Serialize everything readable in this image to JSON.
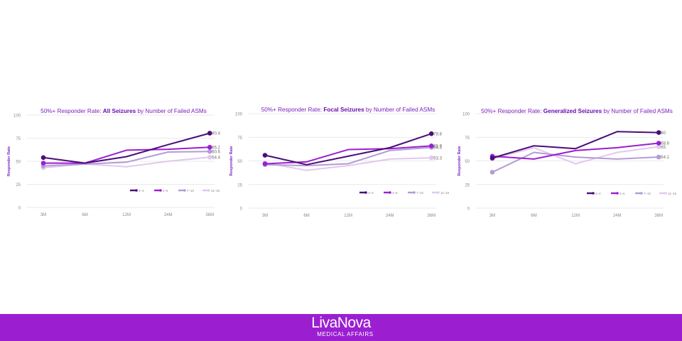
{
  "colors": {
    "footer": "#9b1fd1",
    "title_text": "#7a1fbf",
    "title_bold": "#6a0dad",
    "axis_text": "#8a8a8a",
    "grid": "#e2e2e2",
    "ylabel": "#7a1fbf"
  },
  "series_colors": [
    "#4a0e78",
    "#9b1fd1",
    "#b49bd6",
    "#e2c8ee"
  ],
  "legend_labels": [
    "2–3",
    "4–6",
    "7–10",
    "11–16"
  ],
  "chart_data": [
    {
      "type": "line",
      "title_prefix": "50%+ Responder Rate: ",
      "title_bold": "All Seizures",
      "title_suffix": " by Number of Failed ASMs",
      "ylabel": "Responder Rate",
      "xlabel": "",
      "categories": [
        "3M",
        "6M",
        "12M",
        "24M",
        "36M"
      ],
      "ylim": [
        0,
        100
      ],
      "yticks": [
        0,
        25,
        50,
        75,
        100
      ],
      "legend_position": "bottom-right",
      "grid": true,
      "series": [
        {
          "name": "2–3",
          "values": [
            54,
            48,
            55,
            68,
            80.4
          ],
          "end_label": "80.4"
        },
        {
          "name": "4–6",
          "values": [
            48,
            48,
            62,
            63,
            65.2
          ],
          "end_label": "65.2"
        },
        {
          "name": "7–10",
          "values": [
            45,
            47,
            49,
            60,
            60.6
          ],
          "end_label": "60.6"
        },
        {
          "name": "11–16",
          "values": [
            43,
            47,
            44,
            50,
            54.4
          ],
          "end_label": "54.4"
        }
      ]
    },
    {
      "type": "line",
      "title_prefix": "50%+ Responder Rate: ",
      "title_bold": "Focal Seizures",
      "title_suffix": " by Number of Failed ASMs",
      "ylabel": "Responder Rate",
      "xlabel": "",
      "categories": [
        "3M",
        "6M",
        "12M",
        "24M",
        "36M"
      ],
      "ylim": [
        0,
        100
      ],
      "yticks": [
        0,
        25,
        50,
        75,
        100
      ],
      "legend_position": "bottom-right",
      "grid": true,
      "series": [
        {
          "name": "2–3",
          "values": [
            56,
            46,
            55,
            64,
            78.8
          ],
          "end_label": "78.8"
        },
        {
          "name": "4–6",
          "values": [
            47,
            49,
            62,
            63,
            65.9
          ],
          "end_label": "65.9"
        },
        {
          "name": "7–10",
          "values": [
            46,
            45,
            47,
            61,
            64.3
          ],
          "end_label": "64.3"
        },
        {
          "name": "11–16",
          "values": [
            48,
            40,
            45,
            52,
            53.3
          ],
          "end_label": "53.3"
        }
      ]
    },
    {
      "type": "line",
      "title_prefix": "50%+ Responder Rate: ",
      "title_bold": "Generalized Seizures",
      "title_suffix": " by Number of Failed ASMs",
      "ylabel": "Responder Rate",
      "xlabel": "",
      "categories": [
        "3M",
        "6M",
        "12M",
        "24M",
        "36M"
      ],
      "ylim": [
        0,
        100
      ],
      "yticks": [
        0,
        25,
        50,
        75,
        100
      ],
      "legend_position": "bottom-right",
      "grid": true,
      "series": [
        {
          "name": "2–3",
          "values": [
            53,
            66,
            63,
            81,
            80
          ],
          "end_label": "80"
        },
        {
          "name": "4–6",
          "values": [
            55,
            52,
            61,
            64,
            68.8
          ],
          "end_label": "68.8"
        },
        {
          "name": "7–10",
          "values": [
            38,
            59,
            54,
            52,
            54.1
          ],
          "end_label": "54.1"
        },
        {
          "name": "11–16",
          "values": [
            52,
            64,
            47,
            59,
            65
          ],
          "end_label": "65"
        }
      ]
    }
  ],
  "footer": {
    "brand": "LivaNova",
    "sub": "MEDICAL AFFAIRS"
  }
}
